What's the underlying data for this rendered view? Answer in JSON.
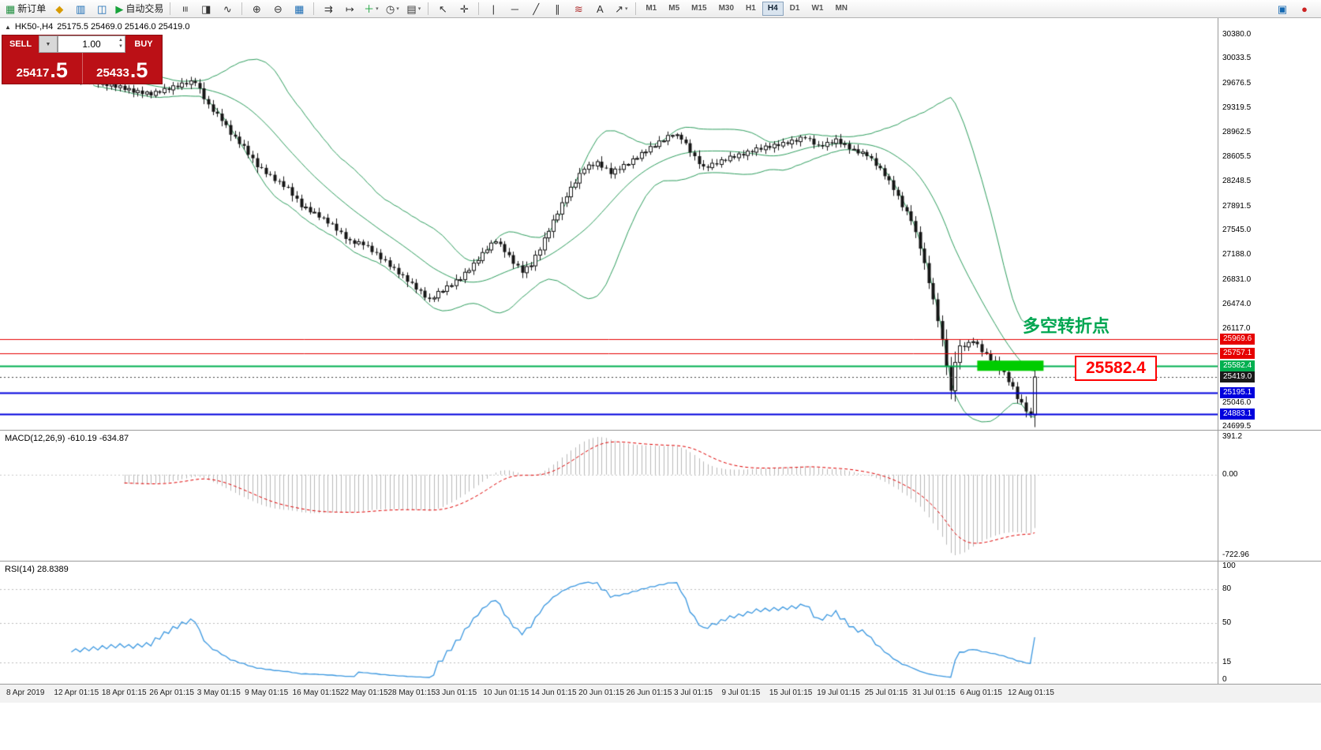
{
  "toolbar": {
    "items": [
      {
        "t": "icon",
        "name": "new-order-button",
        "g": "▦",
        "c": "#1e8e3e",
        "label": "新订单"
      },
      {
        "t": "icon",
        "name": "charts-icon",
        "g": "◆",
        "c": "#d89b00"
      },
      {
        "t": "icon",
        "name": "market-watch-icon",
        "g": "▥",
        "c": "#1669b2"
      },
      {
        "t": "icon",
        "name": "navigator-icon",
        "g": "◫",
        "c": "#1669b2"
      },
      {
        "t": "icon",
        "name": "autotrading-button",
        "g": "▶",
        "c": "#17a33a",
        "label": "自动交易"
      },
      {
        "t": "sep"
      },
      {
        "t": "icon",
        "name": "bar-chart-icon",
        "g": "≡",
        "c": "#333",
        "rot": true
      },
      {
        "t": "icon",
        "name": "candle-chart-icon",
        "g": "◨",
        "c": "#333"
      },
      {
        "t": "icon",
        "name": "line-chart-icon",
        "g": "∿",
        "c": "#333"
      },
      {
        "t": "sep"
      },
      {
        "t": "icon",
        "name": "zoom-in-icon",
        "g": "⊕",
        "c": "#333"
      },
      {
        "t": "icon",
        "name": "zoom-out-icon",
        "g": "⊖",
        "c": "#333"
      },
      {
        "t": "icon",
        "name": "tile-windows-icon",
        "g": "▦",
        "c": "#1669b2"
      },
      {
        "t": "sep"
      },
      {
        "t": "icon",
        "name": "auto-scroll-icon",
        "g": "⇉",
        "c": "#333"
      },
      {
        "t": "icon",
        "name": "chart-shift-icon",
        "g": "↦",
        "c": "#333"
      },
      {
        "t": "icon",
        "name": "indicators-button",
        "g": "＋",
        "c": "#17a33a",
        "dd": true
      },
      {
        "t": "icon",
        "name": "periods-button",
        "g": "◷",
        "c": "#333",
        "dd": true
      },
      {
        "t": "icon",
        "name": "templates-button",
        "g": "▤",
        "c": "#333",
        "dd": true
      },
      {
        "t": "sep"
      },
      {
        "t": "icon",
        "name": "cursor-icon",
        "g": "↖",
        "c": "#333"
      },
      {
        "t": "icon",
        "name": "crosshair-icon",
        "g": "✛",
        "c": "#333"
      },
      {
        "t": "sep"
      },
      {
        "t": "icon",
        "name": "vertical-line-icon",
        "g": "|",
        "c": "#333"
      },
      {
        "t": "icon",
        "name": "horizontal-line-icon",
        "g": "─",
        "c": "#333"
      },
      {
        "t": "icon",
        "name": "trendline-icon",
        "g": "╱",
        "c": "#333"
      },
      {
        "t": "icon",
        "name": "channel-icon",
        "g": "∥",
        "c": "#333"
      },
      {
        "t": "icon",
        "name": "fibonacci-icon",
        "g": "≋",
        "c": "#b03030"
      },
      {
        "t": "icon",
        "name": "text-icon",
        "g": "A",
        "c": "#333"
      },
      {
        "t": "icon",
        "name": "arrows-icon",
        "g": "↗",
        "c": "#333",
        "dd": true
      },
      {
        "t": "sep"
      }
    ],
    "timeframes": [
      "M1",
      "M5",
      "M15",
      "M30",
      "H1",
      "H4",
      "D1",
      "W1",
      "MN"
    ],
    "active_timeframe": "H4",
    "right_items": [
      {
        "name": "window-list-icon",
        "g": "▣",
        "c": "#1669b2"
      },
      {
        "name": "alert-icon",
        "g": "●",
        "c": "#cc2222"
      }
    ]
  },
  "main_chart": {
    "symbol": "HK50-,H4",
    "ohlc_text": "25175.5 25469.0 25146.0 25419.0"
  },
  "one_click": {
    "sell_label": "SELL",
    "buy_label": "BUY",
    "volume": "1.00",
    "sell_price_main": "25417",
    "sell_price_big": ".5",
    "buy_price_main": "25433",
    "buy_price_big": ".5"
  },
  "annotations": {
    "turning_point": "多空转折点",
    "price_callout": "25582.4"
  },
  "macd": {
    "label": "MACD(12,26,9)",
    "values": "-610.19 -634.87",
    "axis_max": "391.2",
    "axis_zero": "0.00",
    "axis_min": "-722.96"
  },
  "rsi": {
    "label": "RSI(14)",
    "value": "28.8389",
    "axis_top": "100",
    "axis_bottom": "0",
    "levels": [
      80,
      50,
      15
    ]
  },
  "price_axis": {
    "gridline_labels": [
      {
        "text": "30380.0",
        "p": 30380.0
      },
      {
        "text": "30033.5",
        "p": 30033.5
      },
      {
        "text": "29676.5",
        "p": 29676.5
      },
      {
        "text": "29319.5",
        "p": 29319.5
      },
      {
        "text": "28962.5",
        "p": 28962.5
      },
      {
        "text": "28605.5",
        "p": 28605.5
      },
      {
        "text": "28248.5",
        "p": 28248.5
      },
      {
        "text": "27891.5",
        "p": 27891.5
      },
      {
        "text": "27545.0",
        "p": 27545.0
      },
      {
        "text": "27188.0",
        "p": 27188.0
      },
      {
        "text": "26831.0",
        "p": 26831.0
      },
      {
        "text": "26474.0",
        "p": 26474.0
      },
      {
        "text": "26117.0",
        "p": 26117.0
      },
      {
        "text": "25046.0",
        "p": 25046.0
      },
      {
        "text": "24699.5",
        "p": 24699.5
      }
    ],
    "tags": [
      {
        "text": "25969.6",
        "p": 25969.6,
        "color": "#e60000"
      },
      {
        "text": "25757.1",
        "p": 25757.1,
        "color": "#e60000"
      },
      {
        "text": "25582.4",
        "p": 25582.4,
        "color": "#00b050"
      },
      {
        "text": "25419.0",
        "p": 25419.0,
        "color": "#1a1a1a"
      },
      {
        "text": "25195.1",
        "p": 25195.1,
        "color": "#0000dd"
      },
      {
        "text": "24883.1",
        "p": 24883.1,
        "color": "#0000dd"
      }
    ]
  },
  "time_axis": {
    "labels": [
      "8 Apr 2019",
      "12 Apr 01:15",
      "18 Apr 01:15",
      "26 Apr 01:15",
      "3 May 01:15",
      "9 May 01:15",
      "16 May 01:15",
      "22 May 01:15",
      "28 May 01:15",
      "3 Jun 01:15",
      "10 Jun 01:15",
      "14 Jun 01:15",
      "20 Jun 01:15",
      "26 Jun 01:15",
      "3 Jul 01:15",
      "9 Jul 01:15",
      "15 Jul 01:15",
      "19 Jul 01:15",
      "25 Jul 01:15",
      "31 Jul 01:15",
      "6 Aug 01:15",
      "12 Aug 01:15"
    ]
  },
  "chart_data": {
    "type": "candlestick",
    "symbol": "HK50-",
    "timeframe": "H4",
    "price_range": {
      "top": 30380.0,
      "bottom": 24699.5
    },
    "closes": [
      30030,
      30044,
      29978,
      29992,
      29926,
      29940,
      29886,
      29912,
      29858,
      29884,
      29830,
      29850,
      29790,
      29810,
      29750,
      29770,
      29716,
      29742,
      29688,
      29714,
      29660,
      29688,
      29636,
      29664,
      29612,
      29640,
      29580,
      29600,
      29540,
      29570,
      29520,
      29550,
      29500,
      29560,
      29540,
      29600,
      29580,
      29640,
      29620,
      29680,
      29660,
      29710,
      29680,
      29603,
      29446,
      29370,
      29263,
      29236,
      29130,
      29070,
      28930,
      28903,
      28796,
      28770,
      28640,
      28590,
      28460,
      28450,
      28360,
      28350,
      28260,
      28257,
      28174,
      28170,
      28047,
      28004,
      27880,
      27882,
      27805,
      27807,
      27730,
      27727,
      27644,
      27640,
      27540,
      27520,
      27420,
      27400,
      27350,
      27380,
      27330,
      27320,
      27230,
      27220,
      27125,
      27110,
      27015,
      27000,
      26907,
      26894,
      26800,
      26783,
      26687,
      26670,
      26570,
      26550,
      26565,
      26660,
      26660,
      26740,
      26743,
      26827,
      26830,
      26937,
      26963,
      27070,
      27107,
      27223,
      27260,
      27360,
      27380,
      27345,
      27230,
      27185,
      27060,
      27035,
      26930,
      27020,
      27030,
      27185,
      27260,
      27435,
      27530,
      27695,
      27780,
      27945,
      28030,
      28170,
      28230,
      28370,
      28430,
      28493,
      28477,
      28540,
      28453,
      28447,
      28360,
      28433,
      28427,
      28500,
      28500,
      28580,
      28587,
      28673,
      28680,
      28760,
      28760,
      28840,
      28840,
      28920,
      28920,
      28930,
      28860,
      28807,
      28673,
      28620,
      28505,
      28470,
      28453,
      28517,
      28500,
      28567,
      28553,
      28620,
      28597,
      28653,
      28630,
      28693,
      28677,
      28740,
      28713,
      28767,
      28740,
      28793,
      28767,
      28820,
      28797,
      28853,
      28830,
      28895,
      28880,
      28873,
      28787,
      28780,
      28760,
      28820,
      28805,
      28870,
      28795,
      28800,
      28720,
      28720,
      28660,
      28680,
      28620,
      28590,
      28480,
      28445,
      28330,
      28270,
      28130,
      28045,
      27880,
      27820,
      27680,
      27520,
      27280,
      27070,
      26780,
      26545,
      26230,
      25970,
      25580,
      25220,
      25630,
      25870,
      25855,
      25920,
      25930,
      25895,
      25780,
      25760,
      25660,
      25640,
      25525,
      25490,
      25345,
      25280,
      25100,
      25050,
      24920,
      24870,
      25419
    ],
    "indicators": {
      "bollinger_period": 20,
      "bollinger_dev": 2,
      "macd": [
        12,
        26,
        9
      ],
      "rsi_period": 14
    },
    "levels": [
      {
        "p": 25969.6,
        "color": "#e60000",
        "w": 1,
        "style": "solid"
      },
      {
        "p": 25757.1,
        "color": "#e60000",
        "w": 1,
        "style": "solid"
      },
      {
        "p": 25582.4,
        "color": "#00b050",
        "w": 2,
        "style": "solid"
      },
      {
        "p": 25195.1,
        "color": "#0000dd",
        "w": 2,
        "style": "solid"
      },
      {
        "p": 24883.1,
        "color": "#0000dd",
        "w": 2,
        "style": "solid"
      },
      {
        "p": 25419.0,
        "color": "#444444",
        "w": 1,
        "style": "dotted"
      }
    ],
    "highlight_box": {
      "price": 25582.4,
      "candle_from": 219,
      "candle_to": 234,
      "color": "#00cc00"
    },
    "colors": {
      "band": "#2e9e5e",
      "candle_up_fill": "#ffffff",
      "candle_down_fill": "#151515",
      "candle_stroke": "#151515",
      "macd_hist": "#b9b9b9",
      "macd_signal": "#e00000",
      "rsi_line": "#3a97e0",
      "level_dash": "#bdbdbd"
    }
  }
}
